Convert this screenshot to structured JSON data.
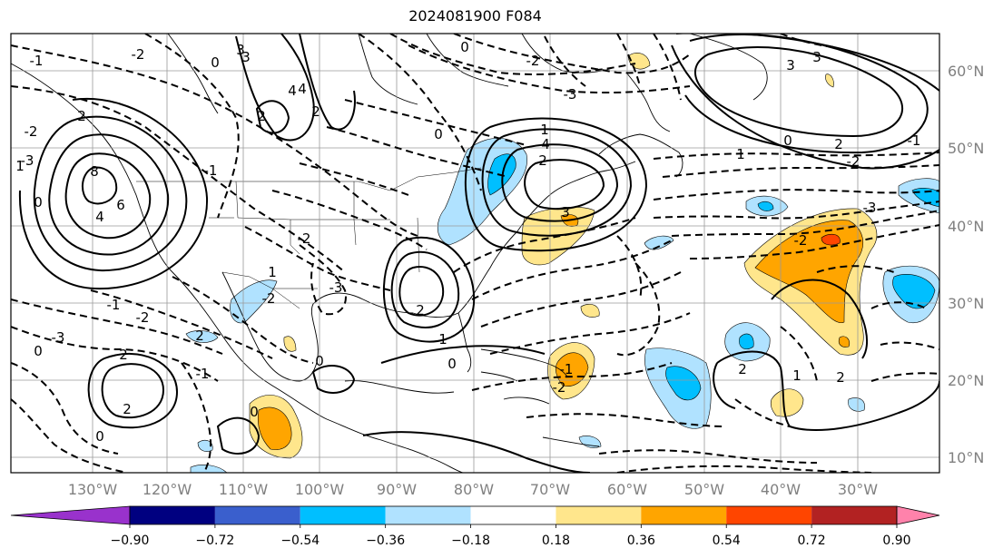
{
  "title": "2024081900 F084",
  "lon_labels": [
    "130°W",
    "120°W",
    "110°W",
    "100°W",
    "90°W",
    "80°W",
    "70°W",
    "60°W",
    "50°W",
    "40°W",
    "30°W"
  ],
  "lat_labels": [
    "10°N",
    "20°N",
    "30°N",
    "40°N",
    "50°N",
    "60°N"
  ],
  "colorbar": {
    "ticks": [
      "−0.90",
      "−0.72",
      "−0.54",
      "−0.36",
      "−0.18",
      "0.18",
      "0.36",
      "0.54",
      "0.72",
      "0.90"
    ],
    "colors": [
      "#9932cc",
      "#000080",
      "#3a5fcd",
      "#00bfff",
      "#b0e2ff",
      "#ffffff",
      "#ffe68c",
      "#ffa500",
      "#ff4500",
      "#b22222",
      "#ff82ab"
    ]
  },
  "contour_labels": [
    "8",
    "6",
    "4",
    "2",
    "0",
    "-1",
    "-2",
    "-3",
    "1",
    "3",
    "4",
    "-1",
    "2",
    "-2",
    "0",
    "2",
    "3",
    "4",
    "-2",
    "-3",
    "1",
    "0",
    "-2",
    "2",
    "-1",
    "2",
    "0",
    "-2",
    "-3",
    "2",
    "0",
    "-1",
    "0",
    "2",
    "1",
    "0",
    "-2",
    "-1",
    "2",
    "-2",
    "1",
    "2",
    "-3",
    "-2",
    "3",
    "-1",
    "0",
    "4",
    "3",
    "2",
    "0",
    "1",
    "-3",
    "-2",
    "0",
    "1",
    "2",
    "3"
  ]
}
